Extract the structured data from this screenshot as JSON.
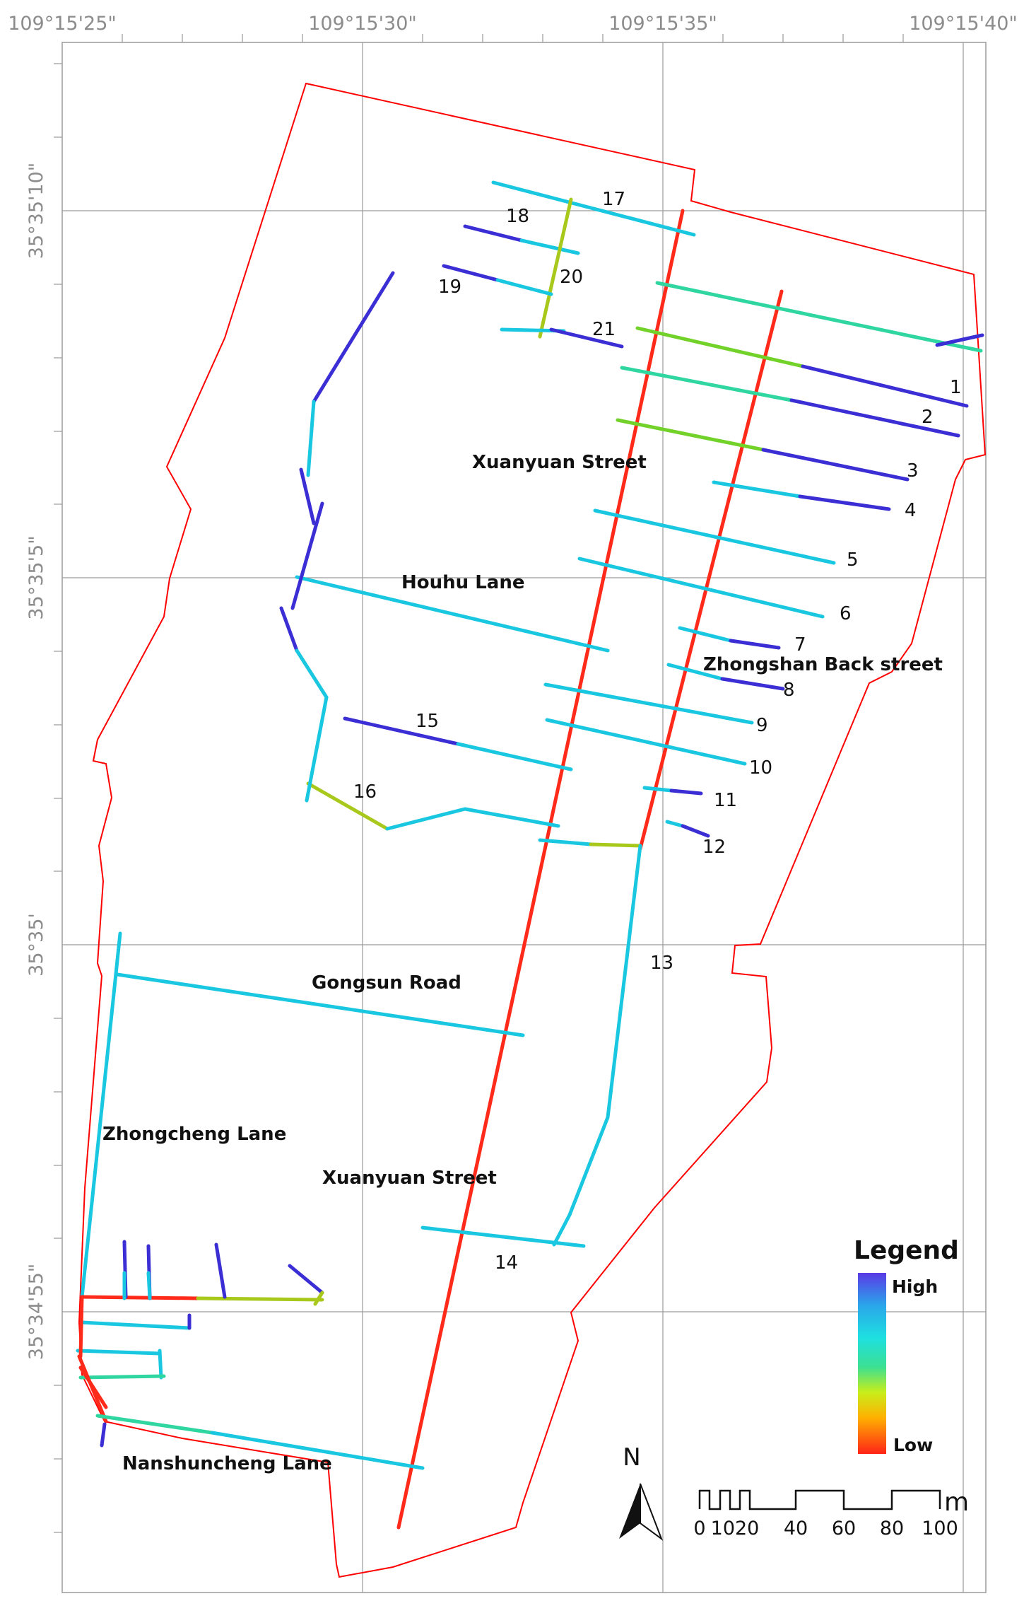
{
  "coordinates": {
    "top": [
      "109°15'25\"",
      "109°15'30\"",
      "109°15'35\"",
      "109°15'40\""
    ],
    "left": [
      "35°35'10\"",
      "35°35'5\"",
      "35°35'",
      "35°34'55\""
    ]
  },
  "streets": {
    "xuanyuan_north": "Xuanyuan Street",
    "houhu": "Houhu Lane",
    "zhongshan_back": "Zhongshan Back street",
    "gongsun": "Gongsun Road",
    "zhongcheng": "Zhongcheng Lane",
    "xuanyuan_south": "Xuanyuan Street",
    "nanshuncheng": "Nanshuncheng Lane"
  },
  "segment_numbers": [
    "1",
    "2",
    "3",
    "4",
    "5",
    "6",
    "7",
    "8",
    "9",
    "10",
    "11",
    "12",
    "13",
    "14",
    "15",
    "16",
    "17",
    "18",
    "19",
    "20",
    "21"
  ],
  "legend": {
    "title": "Legend",
    "high": "High",
    "low": "Low"
  },
  "scale_bar": {
    "ticks": [
      "0",
      "1020",
      "40",
      "60",
      "80",
      "100"
    ],
    "unit": "m"
  },
  "north_arrow": {
    "label": "N"
  },
  "colors": {
    "boundary": "#ff0000",
    "high": "#3a2ed4",
    "medium_high": "#19c7e0",
    "medium": "#2fd6a0",
    "medium_low": "#72d22a",
    "low_medium": "#a8c81c",
    "low": "#ff2a1a"
  }
}
